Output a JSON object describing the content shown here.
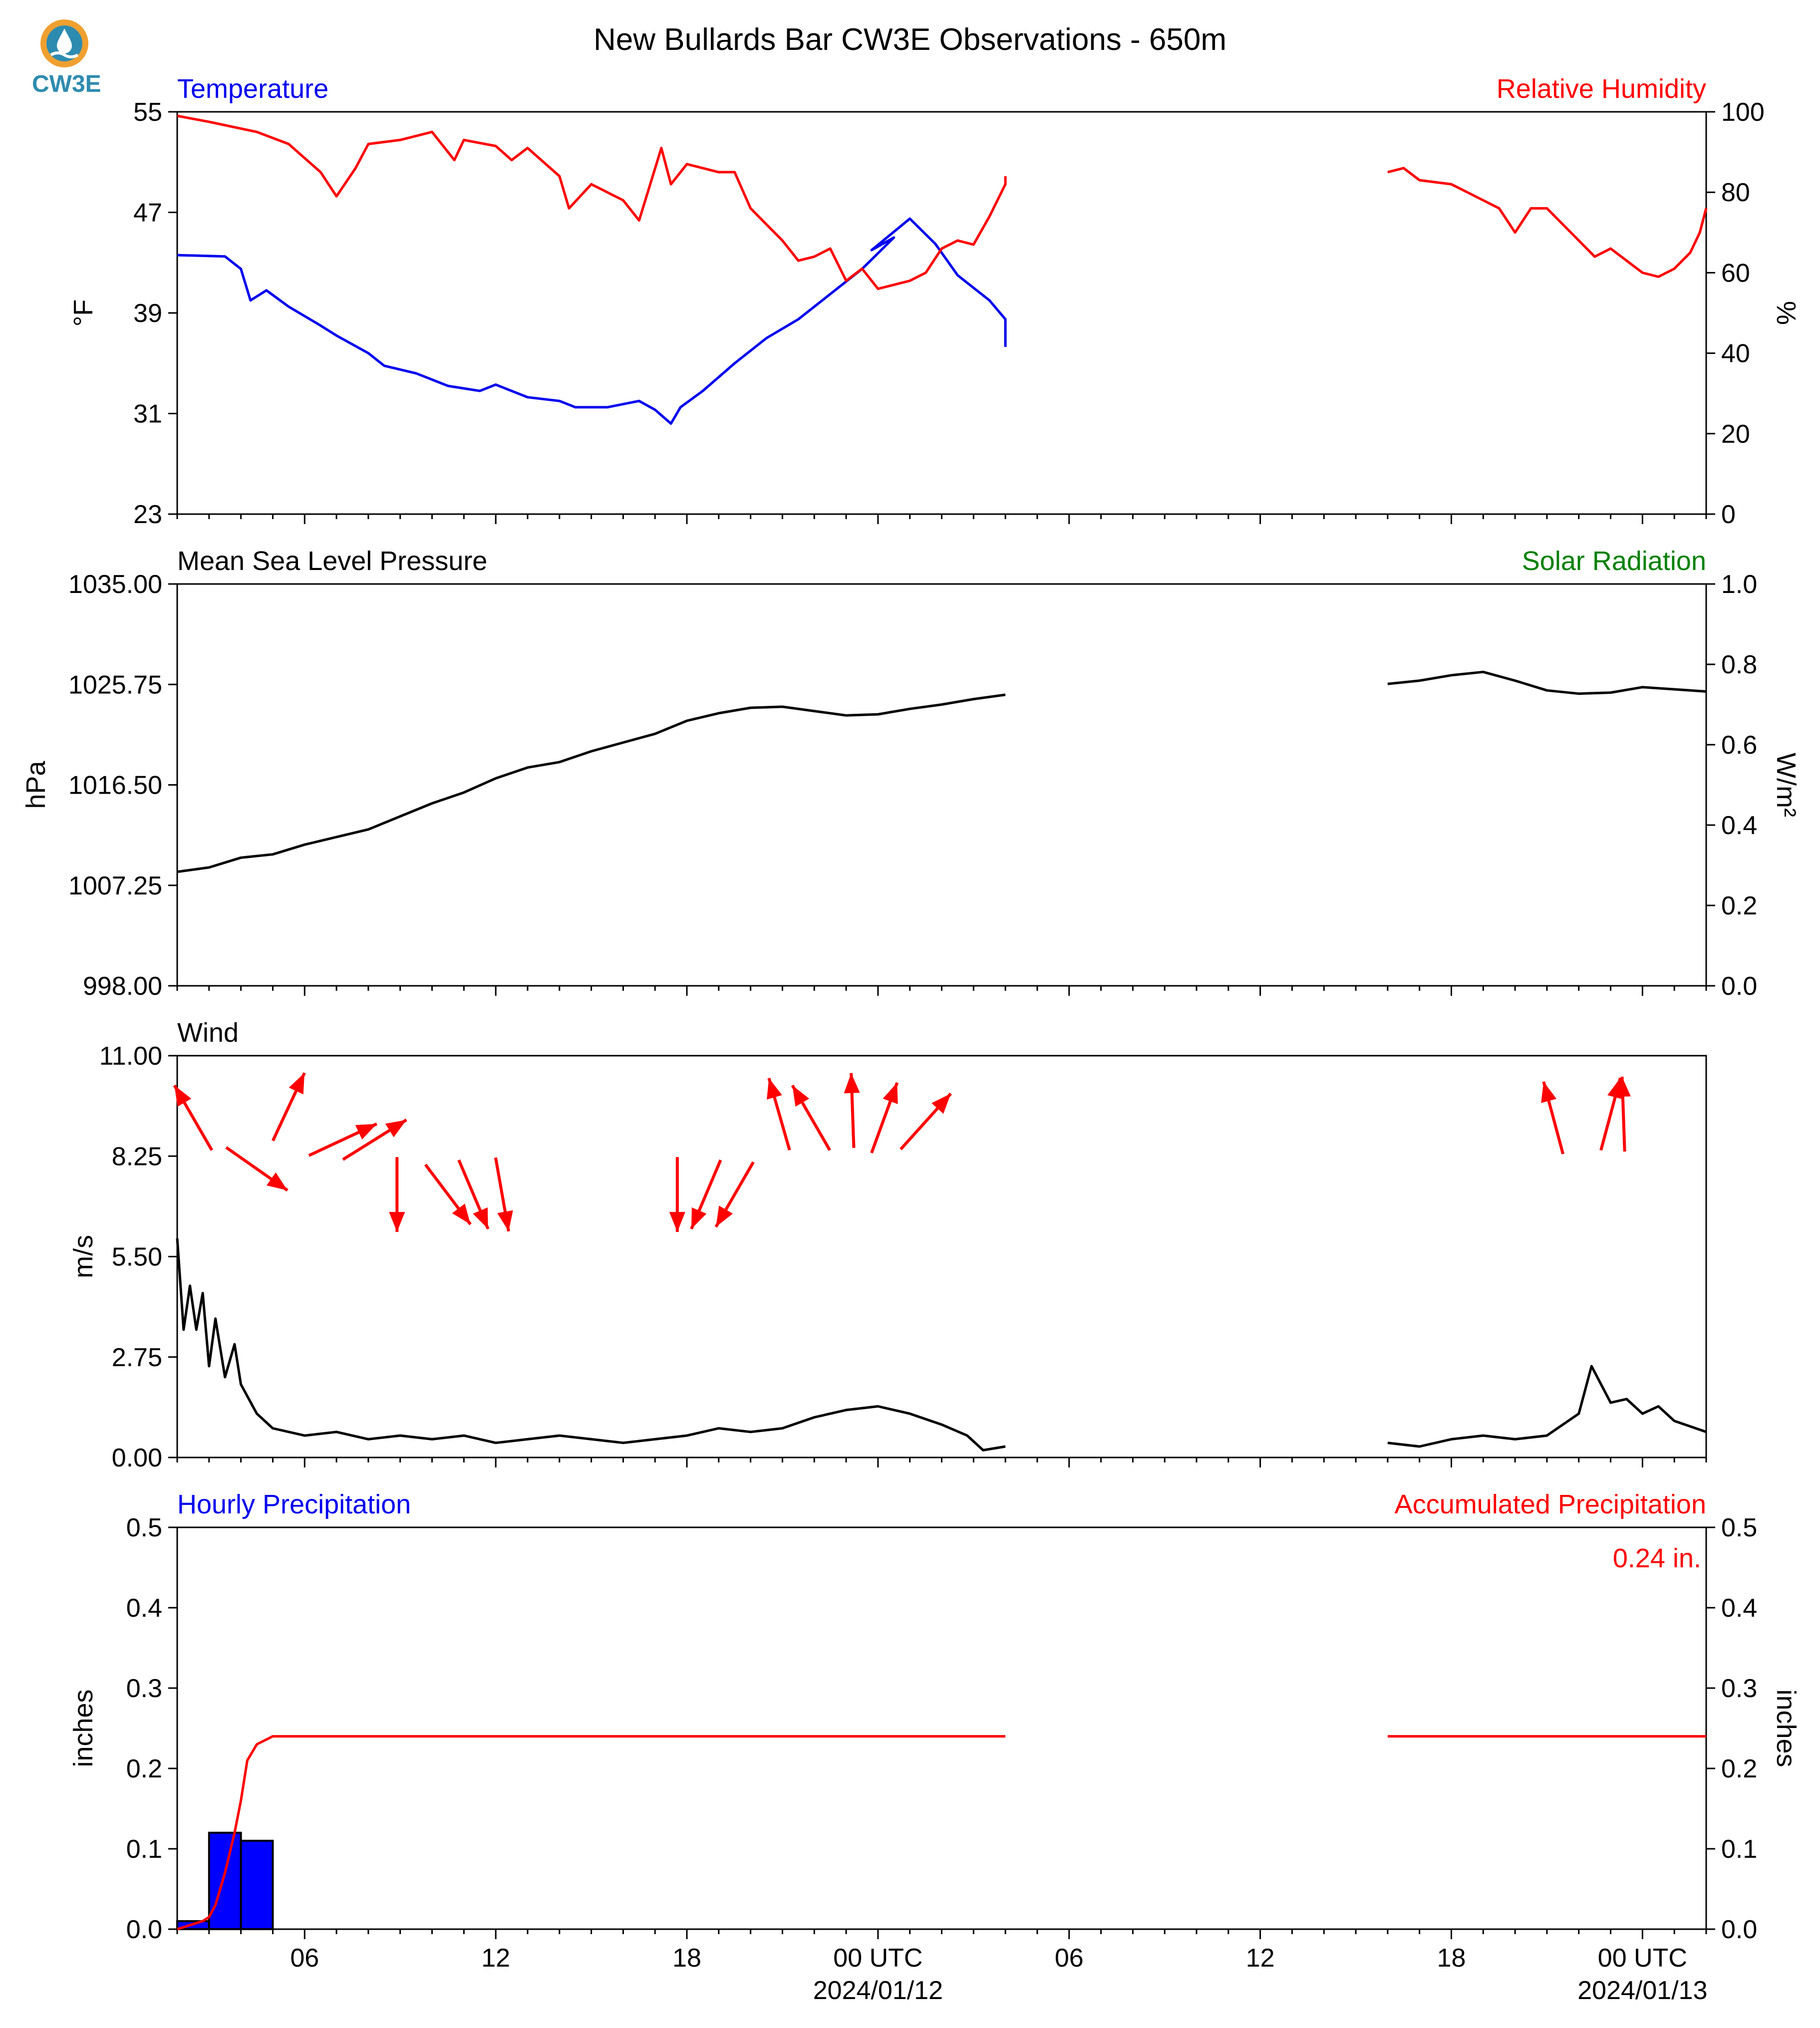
{
  "title": "New Bullards Bar CW3E Observations - 650m",
  "logo": {
    "text": "CW3E",
    "icon": "cw3e-drop-logo-icon"
  },
  "colors": {
    "blue": "#0000ee",
    "red": "#ff0000",
    "green": "#008000",
    "black": "#000000"
  },
  "x_axis": {
    "hour_labels": [
      "06",
      "12",
      "18",
      "00 UTC",
      "06",
      "12",
      "18",
      "00 UTC"
    ],
    "date_labels": [
      "2024/01/12",
      "2024/01/13"
    ]
  },
  "chart_data": [
    {
      "type": "line",
      "name": "temperature-humidity-panel",
      "left_title": "Temperature",
      "right_title": "Relative Humidity",
      "ylabel": "°F",
      "y2label": "%",
      "ylim": [
        23,
        55
      ],
      "yticks": [
        "23",
        "31",
        "39",
        "47",
        "55"
      ],
      "y2lim": [
        0,
        100
      ],
      "y2ticks": [
        "0",
        "20",
        "40",
        "60",
        "80",
        "100"
      ],
      "x_range_hours": [
        0,
        48
      ],
      "gap_hours": [
        26,
        38
      ],
      "series": [
        {
          "name": "Temperature",
          "axis": "left",
          "color": "#0000ee",
          "points": [
            [
              0,
              43.6
            ],
            [
              1.5,
              43.5
            ],
            [
              2,
              42.5
            ],
            [
              2.3,
              40
            ],
            [
              2.8,
              40.8
            ],
            [
              3.5,
              39.5
            ],
            [
              4.5,
              38
            ],
            [
              5,
              37.2
            ],
            [
              6,
              35.8
            ],
            [
              6.5,
              34.8
            ],
            [
              7.5,
              34.2
            ],
            [
              8.5,
              33.2
            ],
            [
              9.5,
              32.8
            ],
            [
              10,
              33.3
            ],
            [
              11,
              32.3
            ],
            [
              12,
              32
            ],
            [
              12.5,
              31.5
            ],
            [
              13.5,
              31.5
            ],
            [
              14.5,
              32
            ],
            [
              15,
              31.3
            ],
            [
              15.5,
              30.2
            ],
            [
              15.8,
              31.5
            ],
            [
              16.5,
              32.8
            ],
            [
              17.5,
              35
            ],
            [
              18.5,
              37
            ],
            [
              19.5,
              38.5
            ],
            [
              20.5,
              40.5
            ],
            [
              21.5,
              42.5
            ],
            [
              22.5,
              45
            ],
            [
              21.8,
              44
            ],
            [
              23,
              46.5
            ],
            [
              23.8,
              44.5
            ],
            [
              24.5,
              42
            ],
            [
              25.5,
              40
            ],
            [
              26,
              38.5
            ],
            [
              26,
              36.3
            ]
          ]
        },
        {
          "name": "Relative Humidity",
          "axis": "right",
          "color": "#ff0000",
          "points": [
            [
              0,
              99
            ],
            [
              1,
              97.5
            ],
            [
              2.5,
              95
            ],
            [
              3.5,
              92
            ],
            [
              4.5,
              85
            ],
            [
              5,
              79
            ],
            [
              5.6,
              86
            ],
            [
              6,
              92
            ],
            [
              7,
              93
            ],
            [
              8,
              95
            ],
            [
              8.7,
              88
            ],
            [
              9,
              93
            ],
            [
              10,
              91.5
            ],
            [
              10.5,
              88
            ],
            [
              11,
              91
            ],
            [
              12,
              84
            ],
            [
              12.3,
              76
            ],
            [
              13,
              82
            ],
            [
              14,
              78
            ],
            [
              14.5,
              73
            ],
            [
              15.2,
              91
            ],
            [
              15.5,
              82
            ],
            [
              16,
              87
            ],
            [
              17,
              85
            ],
            [
              17.5,
              85
            ],
            [
              18,
              76
            ],
            [
              18.5,
              72
            ],
            [
              19,
              68
            ],
            [
              19.5,
              63
            ],
            [
              20,
              64
            ],
            [
              20.5,
              66
            ],
            [
              21,
              58
            ],
            [
              21.5,
              61
            ],
            [
              22,
              56
            ],
            [
              22.5,
              57
            ],
            [
              23,
              58
            ],
            [
              23.5,
              60
            ],
            [
              24,
              66
            ],
            [
              24.5,
              68
            ],
            [
              25,
              67
            ],
            [
              25.5,
              74
            ],
            [
              26,
              82
            ],
            [
              26,
              84
            ],
            [
              38,
              85
            ],
            [
              38.5,
              86
            ],
            [
              39,
              83
            ],
            [
              40,
              82
            ],
            [
              40.5,
              80
            ],
            [
              41,
              78
            ],
            [
              41.5,
              76
            ],
            [
              42,
              70
            ],
            [
              42.5,
              76
            ],
            [
              43,
              76
            ],
            [
              44,
              68
            ],
            [
              44.5,
              64
            ],
            [
              45,
              66
            ],
            [
              46,
              60
            ],
            [
              46.5,
              59
            ],
            [
              47,
              61
            ],
            [
              47.5,
              65
            ],
            [
              47.8,
              70
            ],
            [
              48,
              76
            ]
          ]
        }
      ]
    },
    {
      "type": "line",
      "name": "pressure-solar-panel",
      "left_title": "Mean Sea Level Pressure",
      "right_title": "Solar Radiation",
      "ylabel": "hPa",
      "y2label": "W/m²",
      "ylim": [
        998.0,
        1035.0
      ],
      "yticks": [
        "998.00",
        "1007.25",
        "1016.50",
        "1025.75",
        "1035.00"
      ],
      "y2lim": [
        0,
        1.0
      ],
      "y2ticks": [
        "0.0",
        "0.2",
        "0.4",
        "0.6",
        "0.8",
        "1.0"
      ],
      "x_range_hours": [
        0,
        48
      ],
      "gap_hours": [
        26,
        38
      ],
      "series": [
        {
          "name": "Mean Sea Level Pressure",
          "axis": "left",
          "color": "#000000",
          "points": [
            [
              0,
              1008.5
            ],
            [
              1,
              1008.9
            ],
            [
              2,
              1009.8
            ],
            [
              3,
              1010.1
            ],
            [
              4,
              1011
            ],
            [
              5,
              1011.7
            ],
            [
              6,
              1012.4
            ],
            [
              7,
              1013.6
            ],
            [
              8,
              1014.8
            ],
            [
              9,
              1015.8
            ],
            [
              10,
              1017.1
            ],
            [
              11,
              1018.1
            ],
            [
              12,
              1018.6
            ],
            [
              13,
              1019.6
            ],
            [
              14,
              1020.4
            ],
            [
              15,
              1021.2
            ],
            [
              16,
              1022.4
            ],
            [
              17,
              1023.1
            ],
            [
              18,
              1023.6
            ],
            [
              19,
              1023.7
            ],
            [
              20,
              1023.3
            ],
            [
              21,
              1022.9
            ],
            [
              22,
              1023.0
            ],
            [
              23,
              1023.5
            ],
            [
              24,
              1023.9
            ],
            [
              25,
              1024.4
            ],
            [
              26,
              1024.8
            ],
            [
              38,
              1025.8
            ],
            [
              39,
              1026.1
            ],
            [
              40,
              1026.6
            ],
            [
              41,
              1026.9
            ],
            [
              42,
              1026.1
            ],
            [
              43,
              1025.2
            ],
            [
              44,
              1024.9
            ],
            [
              45,
              1025.0
            ],
            [
              46,
              1025.5
            ],
            [
              47,
              1025.3
            ],
            [
              48,
              1025.1
            ]
          ]
        }
      ]
    },
    {
      "type": "line",
      "name": "wind-panel",
      "left_title": "Wind",
      "ylabel": "m/s",
      "ylim": [
        0.0,
        11.0
      ],
      "yticks": [
        "0.00",
        "2.75",
        "5.50",
        "8.25",
        "11.00"
      ],
      "x_range_hours": [
        0,
        48
      ],
      "gap_hours": [
        26,
        38
      ],
      "series": [
        {
          "name": "Wind Speed",
          "axis": "left",
          "color": "#000000",
          "points": [
            [
              0,
              6
            ],
            [
              0.2,
              3.5
            ],
            [
              0.4,
              4.7
            ],
            [
              0.6,
              3.5
            ],
            [
              0.8,
              4.5
            ],
            [
              1,
              2.5
            ],
            [
              1.2,
              3.8
            ],
            [
              1.5,
              2.2
            ],
            [
              1.8,
              3.1
            ],
            [
              2,
              2
            ],
            [
              2.5,
              1.2
            ],
            [
              3,
              0.8
            ],
            [
              4,
              0.6
            ],
            [
              5,
              0.7
            ],
            [
              6,
              0.5
            ],
            [
              7,
              0.6
            ],
            [
              8,
              0.5
            ],
            [
              9,
              0.6
            ],
            [
              10,
              0.4
            ],
            [
              11,
              0.5
            ],
            [
              12,
              0.6
            ],
            [
              13,
              0.5
            ],
            [
              14,
              0.4
            ],
            [
              15,
              0.5
            ],
            [
              16,
              0.6
            ],
            [
              17,
              0.8
            ],
            [
              18,
              0.7
            ],
            [
              19,
              0.8
            ],
            [
              20,
              1.1
            ],
            [
              21,
              1.3
            ],
            [
              22,
              1.4
            ],
            [
              23,
              1.2
            ],
            [
              24,
              0.9
            ],
            [
              24.8,
              0.6
            ],
            [
              25.3,
              0.2
            ],
            [
              26,
              0.3
            ],
            [
              38,
              0.4
            ],
            [
              39,
              0.3
            ],
            [
              40,
              0.5
            ],
            [
              41,
              0.6
            ],
            [
              42,
              0.5
            ],
            [
              43,
              0.6
            ],
            [
              44,
              1.2
            ],
            [
              44.4,
              2.5
            ],
            [
              45,
              1.5
            ],
            [
              45.5,
              1.6
            ],
            [
              46,
              1.2
            ],
            [
              46.5,
              1.4
            ],
            [
              47,
              1.0
            ],
            [
              48,
              0.7
            ]
          ]
        }
      ],
      "wind_arrows": [
        {
          "hour": 0.5,
          "dir_deg": 330,
          "y": 9.3
        },
        {
          "hour": 3.5,
          "dir_deg": 25,
          "y": 9.6
        },
        {
          "hour": 2.5,
          "dir_deg": 125,
          "y": 7.9
        },
        {
          "hour": 5.2,
          "dir_deg": 65,
          "y": 8.7
        },
        {
          "hour": 6.2,
          "dir_deg": 58,
          "y": 8.7
        },
        {
          "hour": 6.9,
          "dir_deg": 180,
          "y": 7.2
        },
        {
          "hour": 8.5,
          "dir_deg": 143,
          "y": 7.2
        },
        {
          "hour": 9.3,
          "dir_deg": 157,
          "y": 7.2
        },
        {
          "hour": 10.2,
          "dir_deg": 170,
          "y": 7.2
        },
        {
          "hour": 15.7,
          "dir_deg": 180,
          "y": 7.2
        },
        {
          "hour": 16.6,
          "dir_deg": 203,
          "y": 7.2
        },
        {
          "hour": 17.5,
          "dir_deg": 210,
          "y": 7.2
        },
        {
          "hour": 18.9,
          "dir_deg": 344,
          "y": 9.4
        },
        {
          "hour": 19.9,
          "dir_deg": 330,
          "y": 9.3
        },
        {
          "hour": 21.2,
          "dir_deg": 358,
          "y": 9.5
        },
        {
          "hour": 22.2,
          "dir_deg": 20,
          "y": 9.3
        },
        {
          "hour": 23.5,
          "dir_deg": 42,
          "y": 9.2
        },
        {
          "hour": 43.2,
          "dir_deg": 345,
          "y": 9.3
        },
        {
          "hour": 45.0,
          "dir_deg": 15,
          "y": 9.4
        },
        {
          "hour": 45.4,
          "dir_deg": 358,
          "y": 9.4
        }
      ]
    },
    {
      "type": "bar",
      "name": "precipitation-panel",
      "left_title": "Hourly Precipitation",
      "right_title": "Accumulated Precipitation",
      "ylabel": "inches",
      "y2label": "inches",
      "ylim": [
        0.0,
        0.5
      ],
      "yticks": [
        "0.0",
        "0.1",
        "0.2",
        "0.3",
        "0.4",
        "0.5"
      ],
      "y2lim": [
        0.0,
        0.5
      ],
      "y2ticks": [
        "0.0",
        "0.1",
        "0.2",
        "0.3",
        "0.4",
        "0.5"
      ],
      "x_range_hours": [
        0,
        48
      ],
      "gap_hours": [
        26,
        38
      ],
      "annotation": "0.24 in.",
      "bars": [
        {
          "start_hour": 0,
          "end_hour": 1,
          "value": 0.01
        },
        {
          "start_hour": 1,
          "end_hour": 2,
          "value": 0.12
        },
        {
          "start_hour": 2,
          "end_hour": 3,
          "value": 0.11
        }
      ],
      "bar_color": "#0000ff",
      "series": [
        {
          "name": "Accumulated Precipitation",
          "axis": "right",
          "color": "#ff0000",
          "points": [
            [
              0,
              0
            ],
            [
              0.8,
              0.01
            ],
            [
              1,
              0.015
            ],
            [
              1.2,
              0.03
            ],
            [
              1.5,
              0.07
            ],
            [
              1.8,
              0.12
            ],
            [
              2.0,
              0.16
            ],
            [
              2.2,
              0.21
            ],
            [
              2.5,
              0.23
            ],
            [
              3,
              0.24
            ],
            [
              26,
              0.24
            ],
            [
              38,
              0.24
            ],
            [
              48,
              0.24
            ]
          ]
        }
      ]
    }
  ]
}
